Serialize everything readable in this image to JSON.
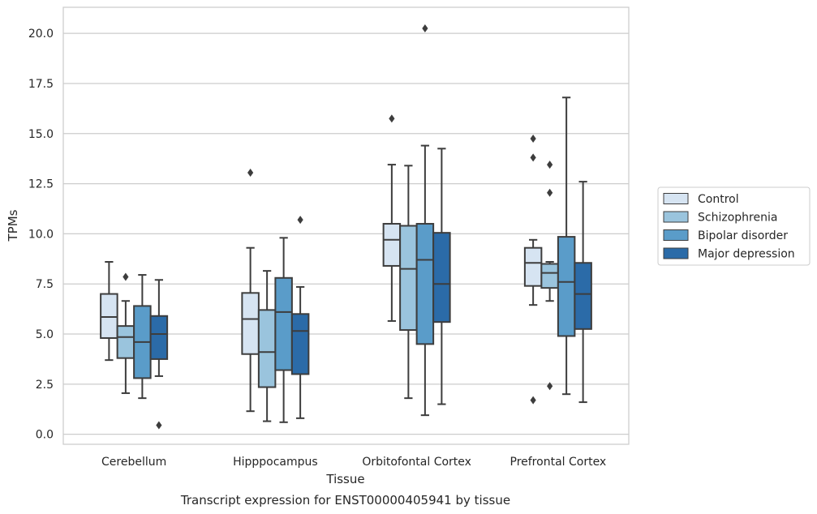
{
  "chart_data": {
    "type": "box",
    "title": "Transcript expression for ENST00000405941 by tissue",
    "xlabel": "Tissue",
    "ylabel": "TPMs",
    "ylim": [
      -0.5,
      21.3
    ],
    "yticks": [
      "0.0",
      "2.5",
      "5.0",
      "7.5",
      "10.0",
      "12.5",
      "15.0",
      "17.5",
      "20.0"
    ],
    "ytick_values": [
      0,
      2.5,
      5,
      7.5,
      10,
      12.5,
      15,
      17.5,
      20
    ],
    "grid": true,
    "legend_position": "right",
    "categories": [
      "Cerebellum",
      "Hipppocampus",
      "Orbitofontal Cortex",
      "Prefrontal Cortex"
    ],
    "series": [
      {
        "name": "Control",
        "color": "#d6e4f2",
        "boxes": [
          {
            "whislo": 3.7,
            "q1": 4.8,
            "med": 5.85,
            "q3": 7.0,
            "whishi": 8.6,
            "fliers": []
          },
          {
            "whislo": 1.15,
            "q1": 4.0,
            "med": 5.75,
            "q3": 7.05,
            "whishi": 9.3,
            "fliers": [
              13.05
            ]
          },
          {
            "whislo": 5.65,
            "q1": 8.4,
            "med": 9.7,
            "q3": 10.5,
            "whishi": 13.45,
            "fliers": [
              15.75
            ]
          },
          {
            "whislo": 6.45,
            "q1": 7.4,
            "med": 8.55,
            "q3": 9.3,
            "whishi": 9.7,
            "fliers": [
              14.75,
              13.8,
              1.7
            ]
          }
        ]
      },
      {
        "name": "Schizophrenia",
        "color": "#9ac4dd",
        "boxes": [
          {
            "whislo": 2.05,
            "q1": 3.8,
            "med": 4.85,
            "q3": 5.4,
            "whishi": 6.65,
            "fliers": [
              7.85
            ]
          },
          {
            "whislo": 0.65,
            "q1": 2.35,
            "med": 4.1,
            "q3": 6.2,
            "whishi": 8.15,
            "fliers": []
          },
          {
            "whislo": 1.8,
            "q1": 5.2,
            "med": 8.25,
            "q3": 10.4,
            "whishi": 13.4,
            "fliers": []
          },
          {
            "whislo": 6.65,
            "q1": 7.3,
            "med": 8.05,
            "q3": 8.5,
            "whishi": 8.6,
            "fliers": [
              13.45,
              12.05,
              2.4
            ]
          }
        ]
      },
      {
        "name": "Bipolar disorder",
        "color": "#5a9cc9",
        "boxes": [
          {
            "whislo": 1.8,
            "q1": 2.8,
            "med": 4.6,
            "q3": 6.4,
            "whishi": 7.95,
            "fliers": []
          },
          {
            "whislo": 0.6,
            "q1": 3.2,
            "med": 6.1,
            "q3": 7.8,
            "whishi": 9.8,
            "fliers": []
          },
          {
            "whislo": 0.95,
            "q1": 4.5,
            "med": 8.7,
            "q3": 10.5,
            "whishi": 14.4,
            "fliers": [
              20.25
            ]
          },
          {
            "whislo": 2.0,
            "q1": 4.9,
            "med": 7.6,
            "q3": 9.85,
            "whishi": 16.8,
            "fliers": []
          }
        ]
      },
      {
        "name": "Major depression",
        "color": "#2b6ba8",
        "boxes": [
          {
            "whislo": 2.9,
            "q1": 3.75,
            "med": 5.0,
            "q3": 5.9,
            "whishi": 7.7,
            "fliers": [
              0.45
            ]
          },
          {
            "whislo": 0.8,
            "q1": 3.0,
            "med": 5.15,
            "q3": 6.0,
            "whishi": 7.35,
            "fliers": [
              10.7
            ]
          },
          {
            "whislo": 1.5,
            "q1": 5.6,
            "med": 7.5,
            "q3": 10.05,
            "whishi": 14.25,
            "fliers": []
          },
          {
            "whislo": 1.6,
            "q1": 5.25,
            "med": 7.0,
            "q3": 8.55,
            "whishi": 12.6,
            "fliers": []
          }
        ]
      }
    ]
  }
}
